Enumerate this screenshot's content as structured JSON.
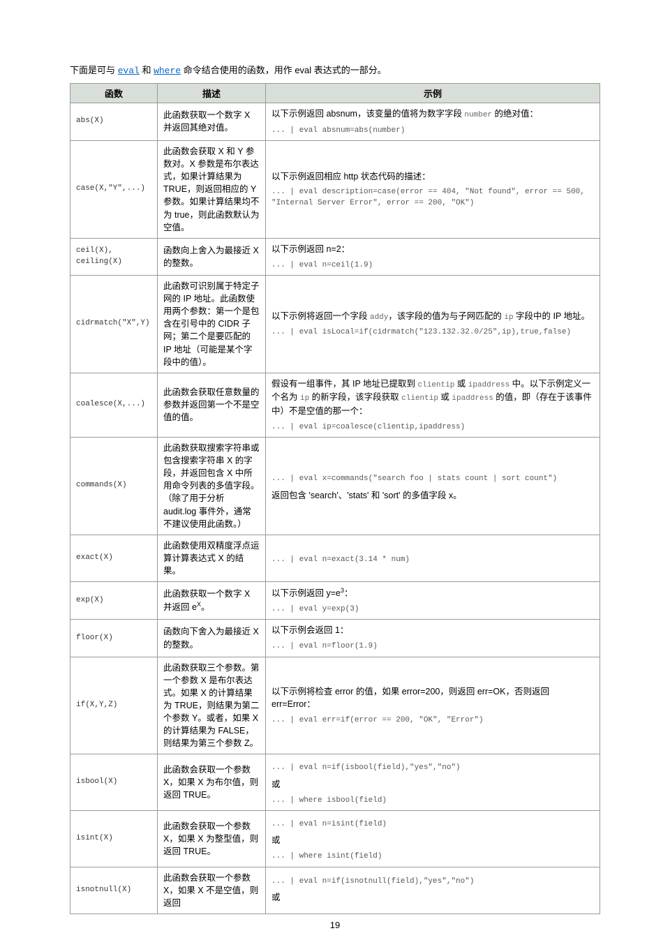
{
  "intro": {
    "prefix": "下面是可与 ",
    "link1": "eval",
    "mid": " 和 ",
    "link2": "where",
    "suffix": " 命令结合使用的函数，用作 eval 表达式的一部分。"
  },
  "headers": {
    "func": "函数",
    "desc": "描述",
    "example": "示例"
  },
  "rows": [
    {
      "func": "abs(X)",
      "desc": "此函数获取一个数字 X 并返回其绝对值。",
      "example_text_pre": "以下示例返回 absnum，该变量的值将为数字字段 ",
      "example_mono_inline": "number",
      "example_text_post": " 的绝对值：",
      "example_code": "... | eval absnum=abs(number)"
    },
    {
      "func": "case(X,\"Y\",...)",
      "desc": "此函数会获取 X 和 Y 参数对。X 参数是布尔表达式，如果计算结果为 TRUE，则返回相应的 Y 参数。如果计算结果均不为 true，则此函数默认为空值。",
      "example_text": "以下示例返回相应 http 状态代码的描述：",
      "example_code": "... | eval description=case(error == 404, \"Not found\", error == 500, \"Internal Server Error\", error == 200, \"OK\")"
    },
    {
      "func": "ceil(X),\nceiling(X)",
      "desc": "函数向上舍入为最接近 X 的整数。",
      "example_text": "以下示例返回 n=2：",
      "example_code": "... | eval n=ceil(1.9)"
    },
    {
      "func": "cidrmatch(\"X\",Y)",
      "desc": "此函数可识别属于特定子网的 IP 地址。此函数使用两个参数：第一个是包含在引号中的 CIDR 子网；第二个是要匹配的 IP 地址（可能是某个字段中的值）。",
      "example_text_pre": "以下示例将返回一个字段 ",
      "example_mono1": "addy",
      "example_text_mid": "，该字段的值为与子网匹配的 ",
      "example_mono2": "ip",
      "example_text_post": " 字段中的 IP 地址。",
      "example_code": "... | eval isLocal=if(cidrmatch(\"123.132.32.0/25\",ip),true,false)"
    },
    {
      "func": "coalesce(X,...)",
      "desc": "此函数会获取任意数量的参数并返回第一个不是空值的值。",
      "example_text_pre": "假设有一组事件，其 IP 地址已提取到 ",
      "example_mono1": "clientip",
      "example_text_mid1": " 或 ",
      "example_mono2": "ipaddress",
      "example_text_mid2": " 中。以下示例定义一个名为 ",
      "example_mono3": "ip",
      "example_text_mid3": " 的新字段，该字段获取 ",
      "example_mono4": "clientip",
      "example_text_mid4": " 或 ",
      "example_mono5": "ipaddress",
      "example_text_post": " 的值，即（存在于该事件中）不是空值的那一个：",
      "example_code": "... | eval ip=coalesce(clientip,ipaddress)"
    },
    {
      "func": "commands(X)",
      "desc": "此函数获取搜索字符串或包含搜索字符串 X 的字段，并返回包含 X 中所用命令列表的多值字段。（除了用于分析 audit.log 事件外，通常不建议使用此函数。）",
      "example_code": "... | eval x=commands(\"search foo | stats count | sort count\")",
      "example_text2": "返回包含 'search'、'stats' 和 'sort' 的多值字段 x。"
    },
    {
      "func": "exact(X)",
      "desc": "此函数使用双精度浮点运算计算表达式 X 的结果。",
      "example_code": "... | eval n=exact(3.14 * num)"
    },
    {
      "func": "exp(X)",
      "desc_html": "此函数获取一个数字 X 并返回 e<sup>X</sup>。",
      "example_text_html": "以下示例返回 y=e<sup>3</sup>：",
      "example_code": "... | eval y=exp(3)"
    },
    {
      "func": "floor(X)",
      "desc": "函数向下舍入为最接近 X 的整数。",
      "example_text": "以下示例会返回 1：",
      "example_code": "... | eval n=floor(1.9)"
    },
    {
      "func": "if(X,Y,Z)",
      "desc": "此函数获取三个参数。第一个参数 X 是布尔表达式。如果 X 的计算结果为 TRUE，则结果为第二个参数 Y。或者，如果 X 的计算结果为 FALSE，则结果为第三个参数 Z。",
      "example_text": "以下示例将检查 error 的值，如果 error=200，则返回 err=OK，否则返回 err=Error：",
      "example_code": "... | eval err=if(error == 200, \"OK\", \"Error\")"
    },
    {
      "func": "isbool(X)",
      "desc": "此函数会获取一个参数 X，如果 X 为布尔值，则返回 TRUE。",
      "example_code1": "... | eval n=if(isbool(field),\"yes\",\"no\")",
      "example_mid": "或",
      "example_code2": "... | where isbool(field)"
    },
    {
      "func": "isint(X)",
      "desc": "此函数会获取一个参数 X，如果 X 为整型值，则返回 TRUE。",
      "example_code1": "... | eval n=isint(field)",
      "example_mid": "或",
      "example_code2": "... | where isint(field)"
    },
    {
      "func": "isnotnull(X)",
      "desc": "此函数会获取一个参数 X，如果 X 不是空值，则返回",
      "example_code1": "... | eval n=if(isnotnull(field),\"yes\",\"no\")",
      "example_mid": "或"
    }
  ],
  "pagenum": "19"
}
